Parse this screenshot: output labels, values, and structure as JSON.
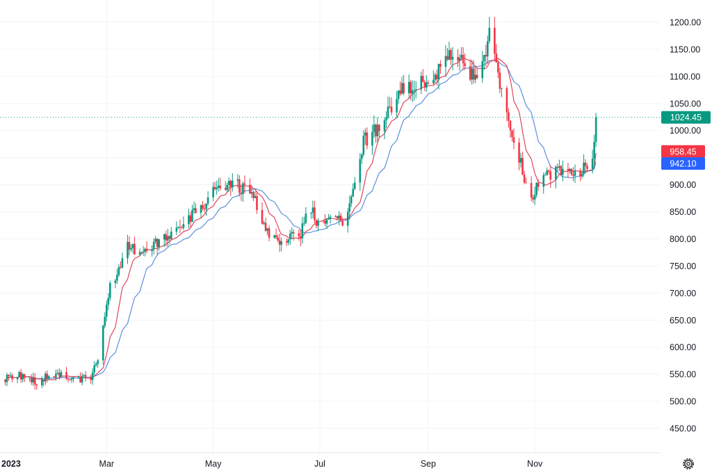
{
  "chart_data": {
    "type": "candlestick",
    "title": "",
    "xlabel": "",
    "ylabel": "",
    "ylim": [
      410,
      1225
    ],
    "grid": true,
    "legend": "none",
    "y_ticks": [
      "450.00",
      "500.00",
      "550.00",
      "600.00",
      "650.00",
      "700.00",
      "750.00",
      "800.00",
      "850.00",
      "900.00",
      "950.00",
      "1000.00",
      "1050.00",
      "1100.00",
      "1150.00",
      "1200.00"
    ],
    "y_tick_values": [
      450,
      500,
      550,
      600,
      650,
      700,
      750,
      800,
      850,
      900,
      950,
      1000,
      1050,
      1100,
      1150,
      1200
    ],
    "x_ticks": [
      {
        "label": "2023",
        "date": "2023-01-01"
      },
      {
        "label": "Mar",
        "date": "2023-03-01"
      },
      {
        "label": "May",
        "date": "2023-05-01"
      },
      {
        "label": "Jul",
        "date": "2023-07-01"
      },
      {
        "label": "Sep",
        "date": "2023-09-01"
      },
      {
        "label": "Nov",
        "date": "2023-11-01"
      }
    ],
    "date_start": "2023-01-01",
    "date_end": "2023-12-31",
    "last_price": {
      "label": "1024.45",
      "value": 1024.45,
      "color": "#089981"
    },
    "ma_fast": {
      "label": "958.45",
      "value": 958.45,
      "color": "#f23645"
    },
    "ma_slow": {
      "label": "942.10",
      "value": 942.1,
      "color": "#2962ff"
    },
    "colors": {
      "up": "#089981",
      "down": "#f23645",
      "ma_fast": "#e0455a",
      "ma_slow": "#5a8fdc",
      "grid": "#f0f3fa",
      "price_line": "#089981"
    },
    "anchors": [
      [
        "2023-01-01",
        540
      ],
      [
        "2023-01-10",
        548
      ],
      [
        "2023-01-20",
        535
      ],
      [
        "2023-02-01",
        555
      ],
      [
        "2023-02-10",
        540
      ],
      [
        "2023-02-20",
        545
      ],
      [
        "2023-02-25",
        590
      ],
      [
        "2023-03-03",
        720
      ],
      [
        "2023-03-08",
        740
      ],
      [
        "2023-03-12",
        790
      ],
      [
        "2023-03-20",
        770
      ],
      [
        "2023-04-01",
        800
      ],
      [
        "2023-04-15",
        830
      ],
      [
        "2023-04-25",
        860
      ],
      [
        "2023-05-05",
        900
      ],
      [
        "2023-05-15",
        900
      ],
      [
        "2023-05-25",
        870
      ],
      [
        "2023-06-01",
        810
      ],
      [
        "2023-06-10",
        795
      ],
      [
        "2023-06-20",
        810
      ],
      [
        "2023-06-25",
        860
      ],
      [
        "2023-07-01",
        820
      ],
      [
        "2023-07-08",
        850
      ],
      [
        "2023-07-15",
        820
      ],
      [
        "2023-07-20",
        880
      ],
      [
        "2023-07-26",
        980
      ],
      [
        "2023-08-05",
        1010
      ],
      [
        "2023-08-15",
        1070
      ],
      [
        "2023-08-25",
        1090
      ],
      [
        "2023-09-05",
        1100
      ],
      [
        "2023-09-15",
        1150
      ],
      [
        "2023-09-25",
        1100
      ],
      [
        "2023-10-02",
        1120
      ],
      [
        "2023-10-07",
        1195
      ],
      [
        "2023-10-12",
        1080
      ],
      [
        "2023-10-18",
        1000
      ],
      [
        "2023-10-25",
        930
      ],
      [
        "2023-10-29",
        870
      ],
      [
        "2023-11-05",
        915
      ],
      [
        "2023-11-15",
        925
      ],
      [
        "2023-11-25",
        915
      ],
      [
        "2023-11-30",
        935
      ],
      [
        "2023-12-04",
        960
      ],
      [
        "2023-12-06",
        1024.45
      ]
    ]
  }
}
